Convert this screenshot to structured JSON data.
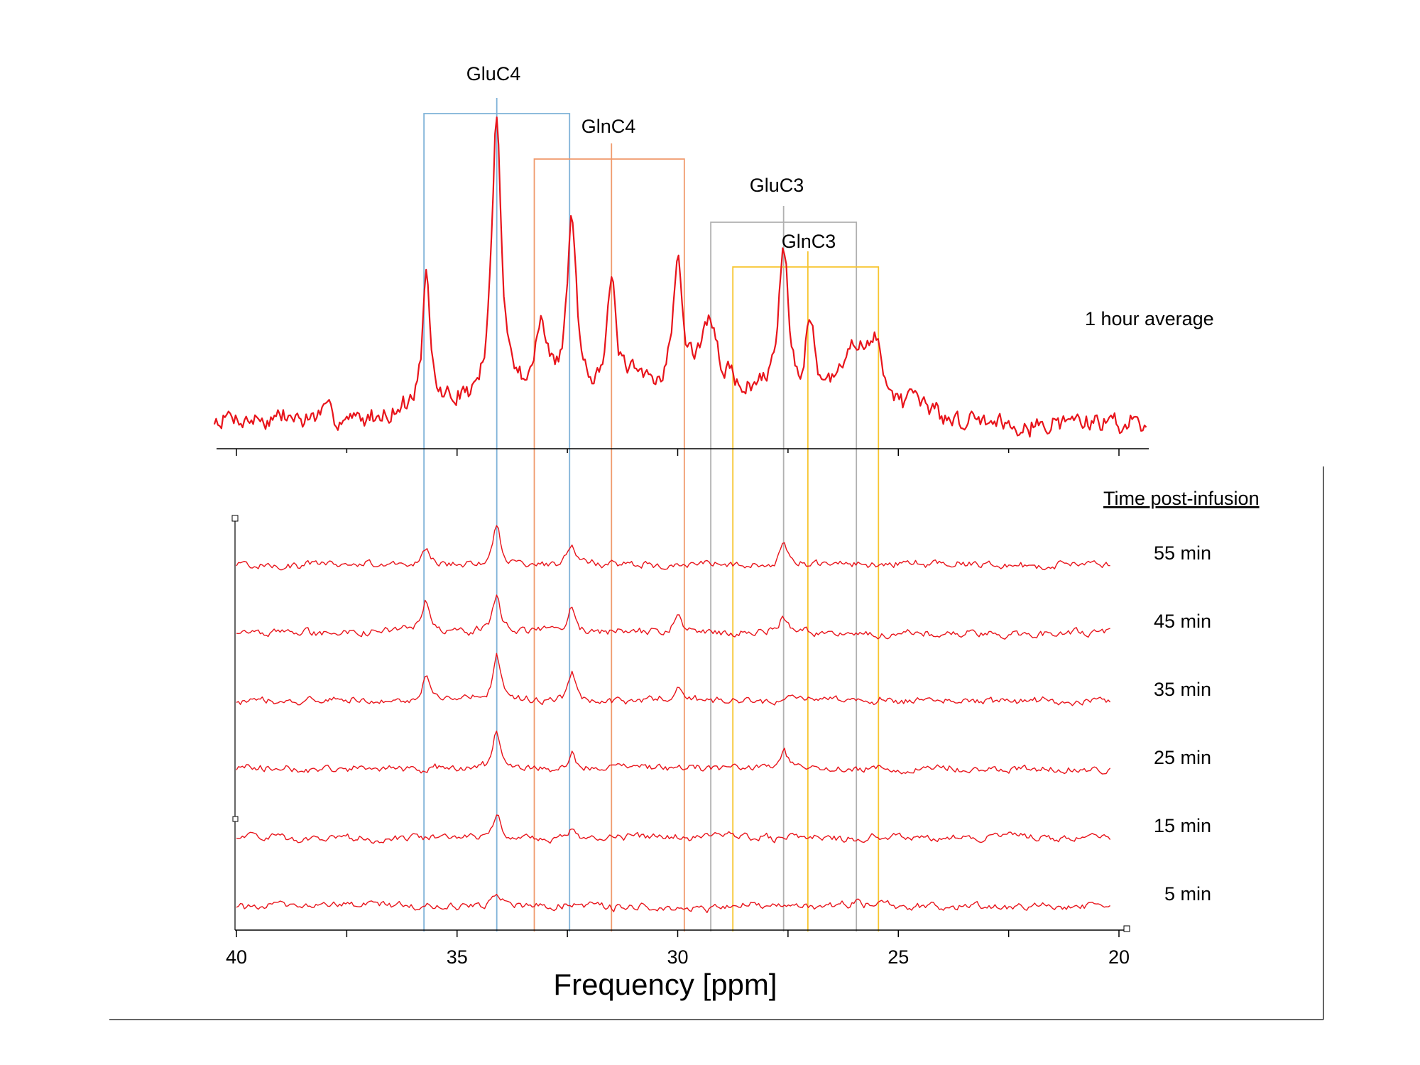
{
  "chart_data": {
    "type": "line",
    "xlabel": "Frequency [ppm]",
    "xlim": [
      40,
      20
    ],
    "x_ticks": [
      "40",
      "35",
      "30",
      "25",
      "20"
    ],
    "line_color": "#e8141b",
    "average": {
      "label": "1 hour average",
      "peaks": [
        {
          "ppm": 35.7,
          "height": 0.4,
          "width": 0.1
        },
        {
          "ppm": 34.1,
          "height": 0.9,
          "width": 0.13
        },
        {
          "ppm": 33.1,
          "height": 0.2,
          "width": 0.14
        },
        {
          "ppm": 32.4,
          "height": 0.55,
          "width": 0.12
        },
        {
          "ppm": 31.5,
          "height": 0.32,
          "width": 0.11
        },
        {
          "ppm": 30.0,
          "height": 0.38,
          "width": 0.12
        },
        {
          "ppm": 29.3,
          "height": 0.2,
          "width": 0.25
        },
        {
          "ppm": 27.6,
          "height": 0.5,
          "width": 0.14
        },
        {
          "ppm": 27.0,
          "height": 0.25,
          "width": 0.12
        },
        {
          "ppm": 26.0,
          "height": 0.2,
          "width": 0.3
        },
        {
          "ppm": 25.5,
          "height": 0.18,
          "width": 0.25
        }
      ]
    },
    "series_title": "Time post-infusion",
    "series": [
      {
        "label": "55 min",
        "peaks": [
          {
            "ppm": 34.1,
            "height": 0.8
          },
          {
            "ppm": 32.4,
            "height": 0.4
          },
          {
            "ppm": 27.6,
            "height": 0.45
          },
          {
            "ppm": 35.7,
            "height": 0.25
          }
        ]
      },
      {
        "label": "45 min",
        "peaks": [
          {
            "ppm": 34.1,
            "height": 0.75
          },
          {
            "ppm": 35.7,
            "height": 0.6
          },
          {
            "ppm": 32.4,
            "height": 0.55
          },
          {
            "ppm": 30.0,
            "height": 0.45
          },
          {
            "ppm": 27.6,
            "height": 0.3
          }
        ]
      },
      {
        "label": "35 min",
        "peaks": [
          {
            "ppm": 34.1,
            "height": 0.9
          },
          {
            "ppm": 35.7,
            "height": 0.5
          },
          {
            "ppm": 32.4,
            "height": 0.55
          },
          {
            "ppm": 30.0,
            "height": 0.25
          }
        ]
      },
      {
        "label": "25 min",
        "peaks": [
          {
            "ppm": 34.1,
            "height": 0.85
          },
          {
            "ppm": 32.4,
            "height": 0.45
          },
          {
            "ppm": 27.6,
            "height": 0.4
          }
        ]
      },
      {
        "label": "15 min",
        "peaks": [
          {
            "ppm": 34.1,
            "height": 0.55
          },
          {
            "ppm": 32.4,
            "height": 0.2
          }
        ]
      },
      {
        "label": "5 min",
        "peaks": [
          {
            "ppm": 34.1,
            "height": 0.2
          }
        ]
      }
    ],
    "annotations": [
      {
        "label": "GluC4",
        "center_ppm": 34.1,
        "range_ppm": [
          35.75,
          32.45
        ],
        "color": "#7fb2d8"
      },
      {
        "label": "GlnC4",
        "center_ppm": 31.5,
        "range_ppm": [
          33.25,
          29.85
        ],
        "color": "#f09a6c"
      },
      {
        "label": "GluC3",
        "center_ppm": 27.6,
        "range_ppm": [
          29.25,
          25.95
        ],
        "color": "#b0b0b0"
      },
      {
        "label": "GlnC3",
        "center_ppm": 27.05,
        "range_ppm": [
          28.75,
          25.45
        ],
        "color": "#f7c52f"
      }
    ]
  }
}
